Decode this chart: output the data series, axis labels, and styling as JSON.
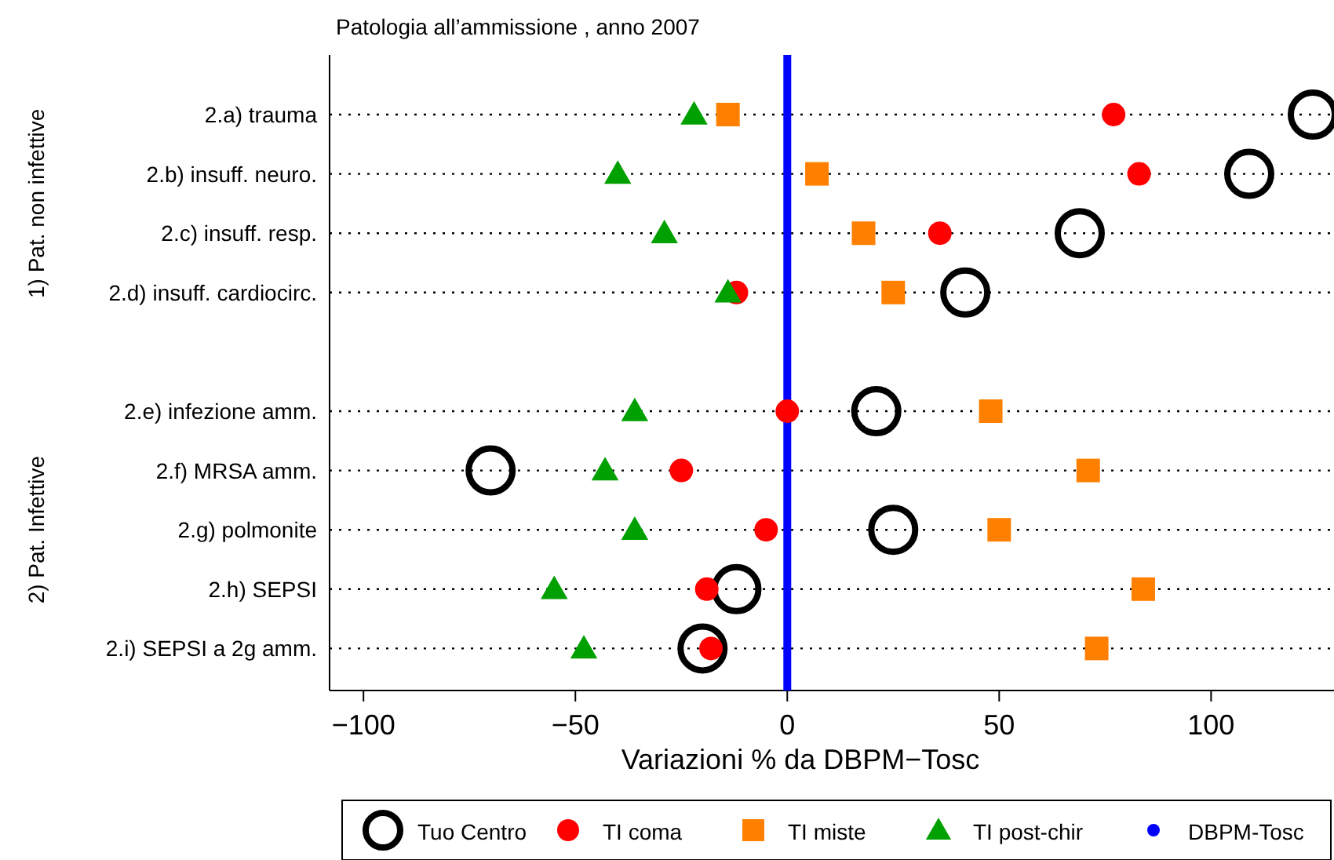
{
  "chart_data": {
    "type": "scatter",
    "orientation": "horizontal",
    "title": "Patologia all’ammissione , anno 2007",
    "xlabel": "Variazioni % da DBPM−Tosc",
    "categories": [
      "2.a) trauma",
      "2.b) insuff. neuro.",
      "2.c) insuff. resp.",
      "2.d) insuff. cardiocirc.",
      null,
      "2.e) infezione amm.",
      "2.f) MRSA amm.",
      "2.g) polmonite",
      "2.h) SEPSI",
      "2.i) SEPSI a 2g amm."
    ],
    "annotations": [
      "1) Pat. non infettive",
      "2) Pat. Infettive"
    ],
    "series": [
      {
        "name": "Tuo Centro",
        "color": "#000000",
        "marker": "circle",
        "values": [
          124,
          109,
          69,
          42,
          null,
          21,
          -70,
          25,
          -12,
          -20
        ]
      },
      {
        "name": "TI coma",
        "color": "#ff0000",
        "marker": "circle",
        "values": [
          77,
          83,
          36,
          -12,
          null,
          0,
          -25,
          -5,
          -19,
          -18
        ]
      },
      {
        "name": "TI miste",
        "color": "#ff8000",
        "marker": "square",
        "values": [
          -14,
          7,
          18,
          25,
          null,
          48,
          71,
          50,
          84,
          73
        ]
      },
      {
        "name": "TI post-chir",
        "color": "#00a000",
        "marker": "triangle",
        "values": [
          -22,
          -40,
          -29,
          -14,
          null,
          -36,
          -43,
          -36,
          -55,
          -48
        ]
      }
    ],
    "ref_lines": [
      {
        "axis": "x",
        "value": 0,
        "label": "DBPM-Tosc",
        "color": "#0000ff"
      }
    ],
    "xlim": [
      -108,
      129
    ],
    "xticks": [
      {
        "value": -100,
        "label": "−100"
      },
      {
        "value": -50,
        "label": "−50"
      },
      0,
      50,
      100
    ],
    "grid": "y",
    "legend": "bottom"
  }
}
